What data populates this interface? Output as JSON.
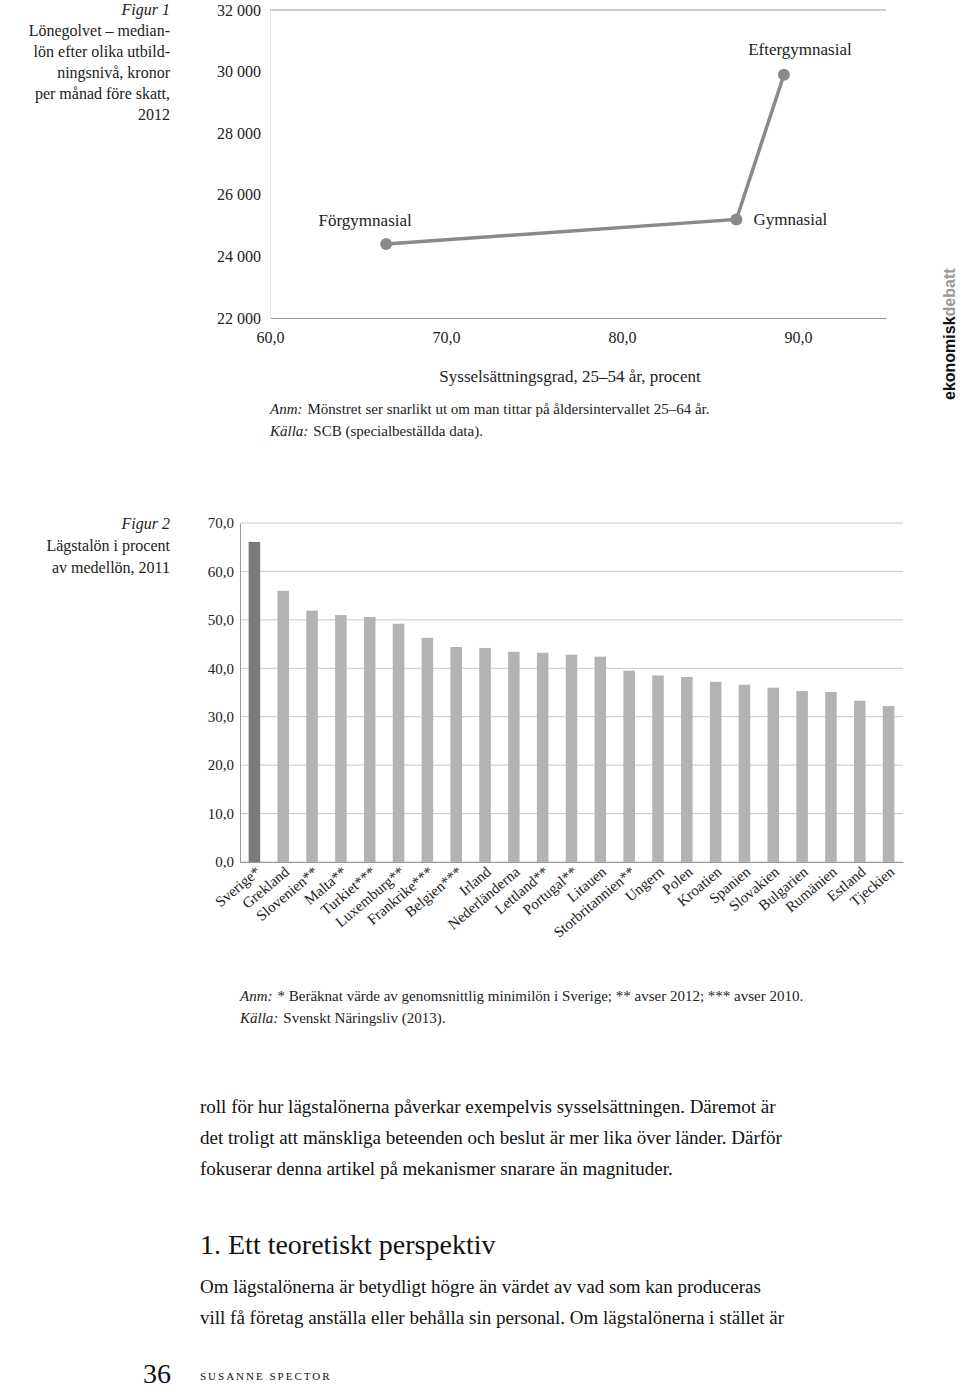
{
  "chart_data": [
    {
      "type": "line",
      "figure_label": "Figur 1",
      "title_lines": [
        "Lönegolvet – median-",
        "lön efter olika utbild-",
        "ningsnivå, kronor",
        "per månad före skatt,",
        "2012"
      ],
      "xlabel": "Sysselsättningsgrad, 25–54 år, procent",
      "x": [
        66.6,
        86.5,
        89.2
      ],
      "values": [
        24400,
        25200,
        29900
      ],
      "point_labels": [
        "Förgymnasial",
        "Gymnasial",
        "Eftergymnasial"
      ],
      "color": "#8a8a8a",
      "marker": "circle",
      "xlim": [
        60,
        95
      ],
      "xticks": [
        {
          "value": 60,
          "label": "60,0"
        },
        {
          "value": 70,
          "label": "70,0"
        },
        {
          "value": 80,
          "label": "80,0"
        },
        {
          "value": 90,
          "label": "90,0"
        }
      ],
      "ylim": [
        22000,
        32000
      ],
      "yticks": [
        {
          "value": 22000,
          "label": "22 000"
        },
        {
          "value": 24000,
          "label": "24 000"
        },
        {
          "value": 26000,
          "label": "26 000"
        },
        {
          "value": 28000,
          "label": "28 000"
        },
        {
          "value": 30000,
          "label": "30 000"
        },
        {
          "value": 32000,
          "label": "32 000"
        }
      ],
      "grid": false,
      "note_label": "Anm:",
      "note": "Mönstret ser snarlikt ut om man tittar på åldersintervallet 25–64 år.",
      "source_label": "Källa:",
      "source": "SCB (specialbeställda data)."
    },
    {
      "type": "bar",
      "figure_label": "Figur 2",
      "title_lines": [
        "Lägstalön i procent",
        "av medellön, 2011"
      ],
      "categories": [
        "Sverige*",
        "Grekland",
        "Slovenien**",
        "Malta**",
        "Turkiet***",
        "Luxemburg**",
        "Frankrike***",
        "Belgien***",
        "Irland",
        "Nederländerna",
        "Lettland**",
        "Portugal**",
        "Litauen",
        "Storbritannien**",
        "Ungern",
        "Polen",
        "Kroatien",
        "Spanien",
        "Slovakien",
        "Bulgarien",
        "Rumänien",
        "Estland",
        "Tjeckien"
      ],
      "values": [
        66.1,
        56.0,
        51.9,
        51.0,
        50.6,
        49.2,
        46.3,
        44.4,
        44.2,
        43.4,
        43.2,
        42.8,
        42.4,
        39.5,
        38.5,
        38.2,
        37.2,
        36.6,
        36.0,
        35.3,
        35.1,
        33.3,
        32.2
      ],
      "colors": [
        "#7a7a7a",
        "#b3b3b3",
        "#b3b3b3",
        "#b3b3b3",
        "#b3b3b3",
        "#b3b3b3",
        "#b3b3b3",
        "#b3b3b3",
        "#b3b3b3",
        "#b3b3b3",
        "#b3b3b3",
        "#b3b3b3",
        "#b3b3b3",
        "#b3b3b3",
        "#b3b3b3",
        "#b3b3b3",
        "#b3b3b3",
        "#b3b3b3",
        "#b3b3b3",
        "#b3b3b3",
        "#b3b3b3",
        "#b3b3b3",
        "#b3b3b3"
      ],
      "ylim": [
        0,
        70
      ],
      "yticks": [
        {
          "value": 0,
          "label": "0,0"
        },
        {
          "value": 10,
          "label": "10,0"
        },
        {
          "value": 20,
          "label": "20,0"
        },
        {
          "value": 30,
          "label": "30,0"
        },
        {
          "value": 40,
          "label": "40,0"
        },
        {
          "value": 50,
          "label": "50,0"
        },
        {
          "value": 60,
          "label": "60,0"
        },
        {
          "value": 70,
          "label": "70,0"
        }
      ],
      "grid": true,
      "note_label": "Anm:",
      "note": "* Beräknat värde av genomsnittlig minimilön i Sverige; ** avser 2012; *** avser 2010.",
      "source_label": "Källa:",
      "source": "Svenskt Näringsliv (2013)."
    }
  ],
  "page": {
    "side_logo": [
      "ekonomisk",
      "debatt"
    ],
    "body_lines": [
      "roll för hur lägstalönerna påverkar exempelvis sysselsättningen. Däremot är",
      "det troligt att mänskliga beteenden och beslut är mer lika över länder. Därför",
      "fokuserar denna artikel på mekanismer snarare än magnituder."
    ],
    "heading": "1. Ett teoretiskt perspektiv",
    "body_lines_2": [
      "Om lägstalönerna är betydligt högre än värdet av vad som kan produceras",
      "vill få företag anställa eller behålla sin personal. Om lägstalönerna i stället är"
    ],
    "page_number": "36",
    "author": "SUSANNE SPECTOR"
  }
}
